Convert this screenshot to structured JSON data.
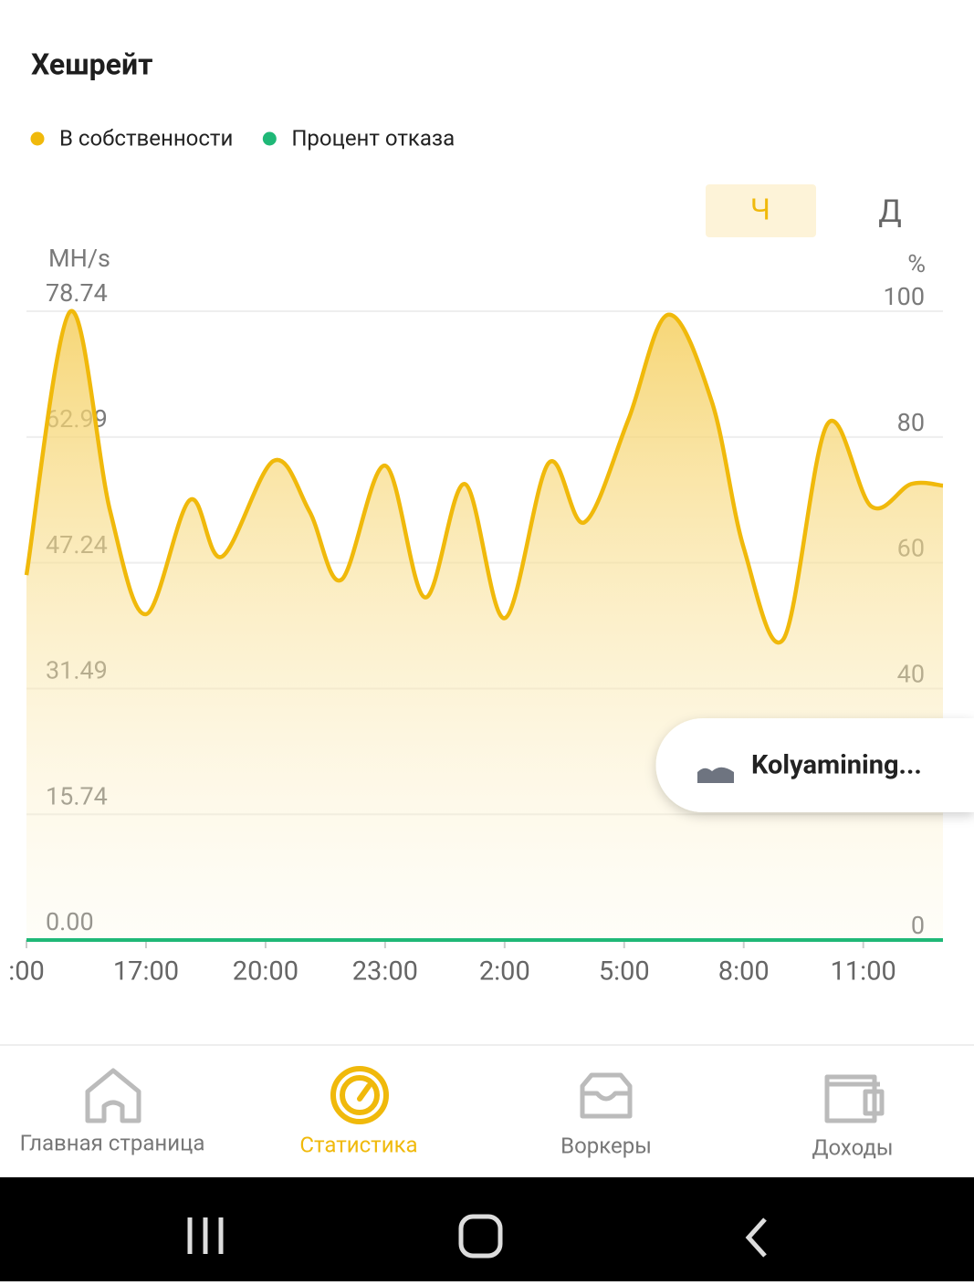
{
  "header": {
    "title": "Хешрейт"
  },
  "period_toggle": {
    "options": [
      "Ч",
      "Д"
    ]
  },
  "chart_data": {
    "type": "area",
    "y_label": "MH/s",
    "y2_label": "%",
    "x": [
      14.0,
      15.1,
      16.1,
      17.0,
      18.1,
      18.9,
      20.2,
      21.1,
      21.9,
      23.0,
      24.0,
      25.0,
      26.0,
      27.1,
      28.0,
      29.1,
      30.1,
      31.2,
      32.0,
      33.0,
      34.1,
      35.2,
      36.2,
      37.0
    ],
    "series": [
      {
        "name": "В собственности",
        "color": "#f0b90b",
        "values": [
          45.7,
          78.7,
          53.7,
          40.8,
          55.1,
          48.0,
          60.0,
          53.7,
          45.1,
          59.4,
          42.9,
          57.1,
          40.3,
          59.7,
          52.3,
          65.1,
          78.3,
          67.4,
          49.1,
          37.7,
          64.6,
          54.3,
          57.1,
          56.9
        ]
      },
      {
        "name": "Процент отказа",
        "color": "#1fb877",
        "axis": "y2",
        "values": [
          0,
          0,
          0,
          0,
          0,
          0,
          0,
          0,
          0,
          0,
          0,
          0,
          0,
          0,
          0,
          0,
          0,
          0,
          0,
          0,
          0,
          0,
          0,
          0
        ]
      }
    ],
    "xlim": [
      14,
      37
    ],
    "xticks": [
      {
        "value": 14,
        "label": ":00"
      },
      {
        "value": 17,
        "label": "17:00"
      },
      {
        "value": 20,
        "label": "20:00"
      },
      {
        "value": 23,
        "label": "23:00"
      },
      {
        "value": 26,
        "label": "2:00"
      },
      {
        "value": 29,
        "label": "5:00"
      },
      {
        "value": 32,
        "label": "8:00"
      },
      {
        "value": 35,
        "label": "11:00"
      }
    ],
    "ylim": [
      0,
      78.74
    ],
    "yticks": [
      {
        "value": 0,
        "label": "0.00"
      },
      15.74,
      31.49,
      47.24,
      62.99,
      78.74
    ],
    "y2lim": [
      0,
      100
    ],
    "y2ticks": [
      0,
      40,
      60,
      80,
      100
    ],
    "grid": true
  },
  "tooltip": {
    "text": "Kolyamining..."
  },
  "nav": {
    "items": [
      "Главная страница",
      "Статистика",
      "Воркеры",
      "Доходы"
    ]
  }
}
